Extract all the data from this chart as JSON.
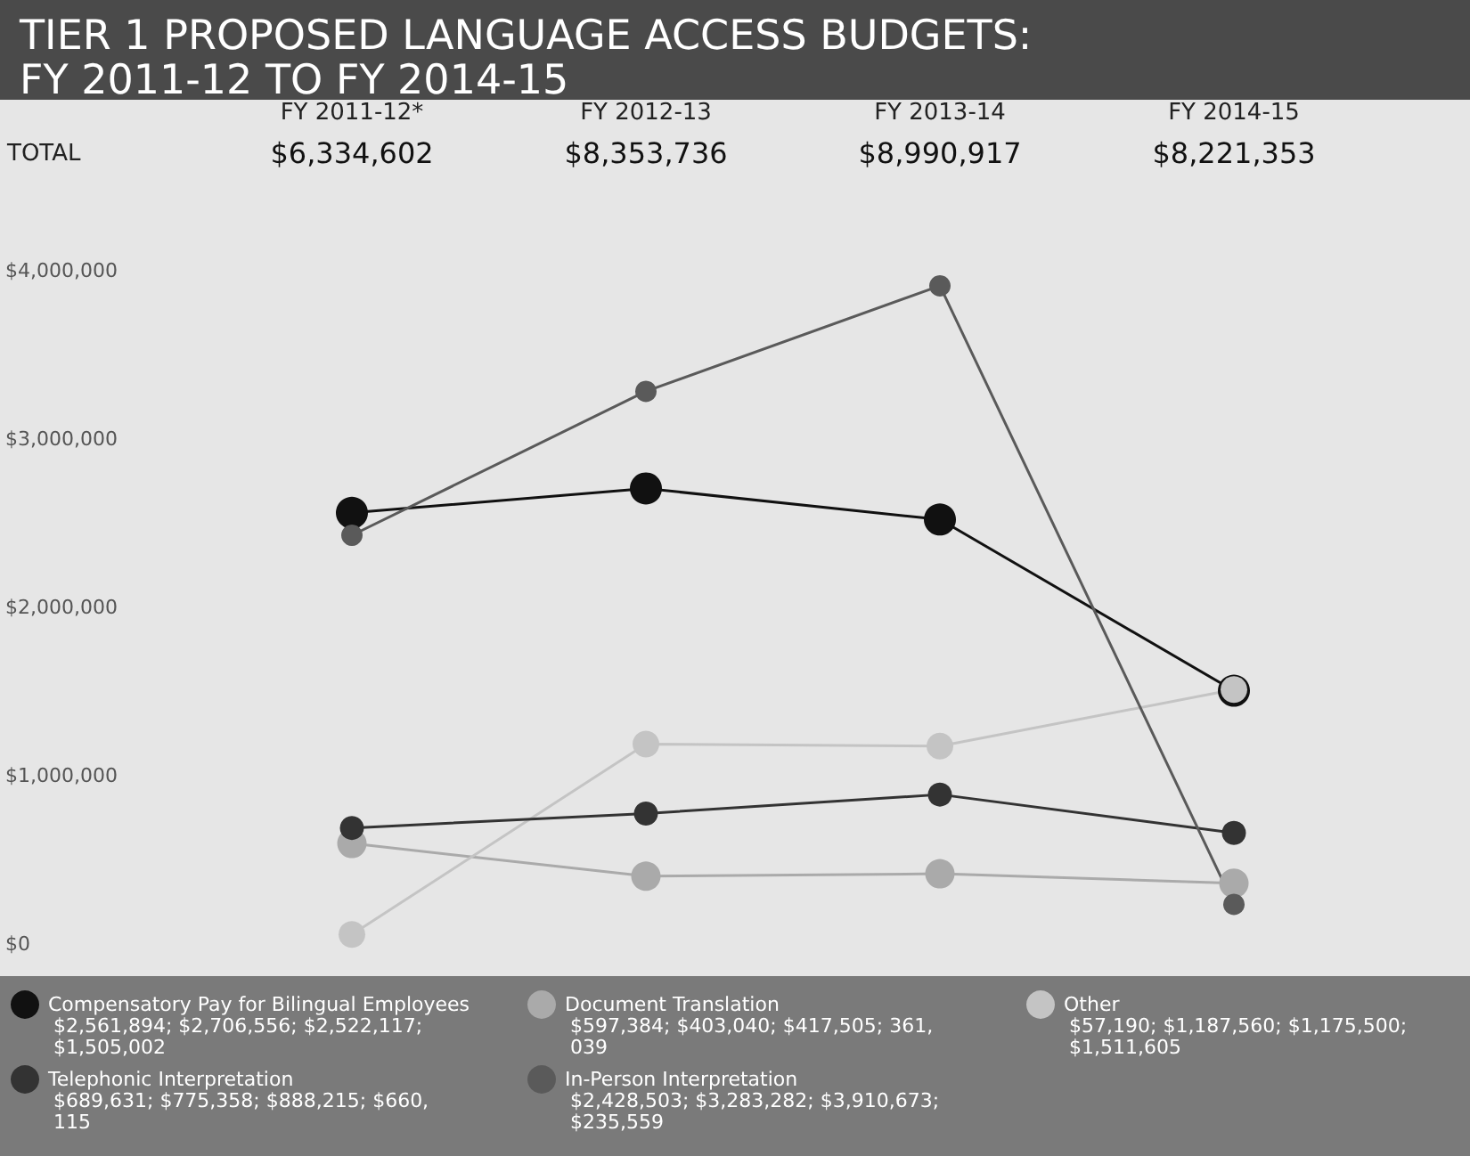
{
  "chart_data": {
    "type": "line",
    "title": "TIER 1 PROPOSED LANGUAGE ACCESS BUDGETS:\nFY 2011-12 TO FY 2014-15",
    "categories": [
      "FY 2011-12*",
      "FY 2012-13",
      "FY 2013-14",
      "FY 2014-15"
    ],
    "annotations": [
      "TOTAL",
      "$6,334,602",
      "$8,353,736",
      "$8,990,917",
      "$8,221,353",
      "$2,561,894; $2,706,556; $2,522,117; $1,505,002",
      "$597,384; $403,040; $417,505; 361,039",
      "$57,190; $1,187,560; $1,175,500; $1,511,605",
      "$689,631; $775,358; $888,215; $660,115",
      "$2,428,503; $3,283,282; $3,910,673; $235,559"
    ],
    "series": [
      {
        "name": "Compensatory Pay for Bilingual Employees",
        "color": "#111111",
        "values": [
          2561894,
          2706556,
          2522117,
          1505002
        ]
      },
      {
        "name": "Document Translation",
        "color": "#aaaaaa",
        "values": [
          597384,
          403040,
          417505,
          361039
        ]
      },
      {
        "name": "Other",
        "color": "#c4c4c4",
        "values": [
          57190,
          1187560,
          1175500,
          1511605
        ]
      },
      {
        "name": "Telephonic Interpretation",
        "color": "#333333",
        "values": [
          689631,
          775358,
          888215,
          660115
        ]
      },
      {
        "name": "In-Person Interpretation",
        "color": "#5a5a5a",
        "values": [
          2428503,
          3283282,
          3910673,
          235559
        ]
      }
    ],
    "ylim": [
      0,
      4000000
    ],
    "yticks": [
      {
        "value": 0,
        "label": "$0"
      },
      {
        "value": 1000000,
        "label": "$1,000,000"
      },
      {
        "value": 2000000,
        "label": "$2,000,000"
      },
      {
        "value": 3000000,
        "label": "$3,000,000"
      },
      {
        "value": 4000000,
        "label": "$4,000,000"
      }
    ],
    "grid": false,
    "legend": "bottom",
    "marker": "circle",
    "line_style": "solid"
  }
}
